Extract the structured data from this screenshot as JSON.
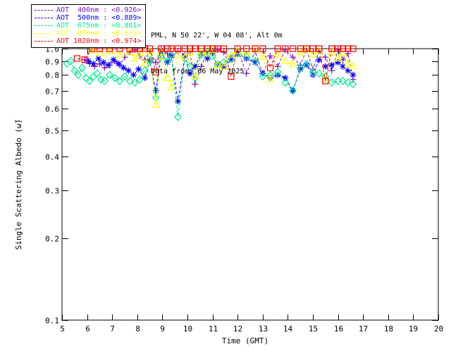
{
  "header": {
    "site_line": "PML, N 50 22', W 04 08', Alt 0m",
    "date_line": "Data from: 06 May 2025"
  },
  "legend": {
    "items": [
      {
        "label": "AOT  400nm : <0.926>",
        "color": "#7d10c0",
        "marker": "plus"
      },
      {
        "label": "AOT  500nm : <0.889>",
        "color": "#0000ff",
        "marker": "asterisk"
      },
      {
        "label": "AOT  675nm : <0.861>",
        "color": "#00e88c",
        "marker": "diamond"
      },
      {
        "label": "AOT  870nm : <0.923>",
        "color": "#ffff00",
        "marker": "triangle"
      },
      {
        "label": "AOT 1020nm : <0.974>",
        "color": "#ff0000",
        "marker": "square"
      }
    ]
  },
  "chart_data": {
    "type": "line",
    "title": "",
    "xlabel": "Time (GMT)",
    "ylabel": "Single Scattering Albedo (ω̃)",
    "xlim": [
      5,
      20
    ],
    "ylim": [
      0.1,
      1.0
    ],
    "yscale": "log",
    "grid": false,
    "legend_position": "top-left-outside",
    "xticks": [
      5,
      6,
      7,
      8,
      9,
      10,
      11,
      12,
      13,
      14,
      15,
      16,
      17,
      18,
      19,
      20
    ],
    "yticks": [
      1.0,
      0.9,
      0.8,
      0.7,
      0.6,
      0.5,
      0.4,
      0.3,
      0.2,
      0.1
    ],
    "axis_color": "#000000",
    "series": [
      {
        "name": "AOT 400nm",
        "wavelength_nm": 400,
        "mean_label": "<0.926>",
        "color": "#7d10c0",
        "marker": "plus",
        "points": [
          [
            5.9,
            0.91
          ],
          [
            6.1,
            0.88
          ],
          [
            6.3,
            0.86
          ],
          [
            6.5,
            0.88
          ],
          [
            6.7,
            0.85
          ],
          [
            6.9,
            0.87
          ],
          [
            7.1,
            0.9
          ],
          [
            7.3,
            0.87
          ],
          [
            7.5,
            0.93
          ],
          [
            7.7,
            0.97
          ],
          [
            7.9,
            0.99
          ],
          [
            8.1,
            0.94
          ],
          [
            8.3,
            0.91
          ],
          [
            8.5,
            0.98
          ],
          [
            8.74,
            0.89
          ],
          [
            8.95,
            0.99
          ],
          [
            9.2,
            0.96
          ],
          [
            9.35,
            0.93
          ],
          [
            9.62,
            0.98
          ],
          [
            9.9,
            0.95
          ],
          [
            10.1,
            0.97
          ],
          [
            10.3,
            0.74
          ],
          [
            10.55,
            0.86
          ],
          [
            10.8,
            0.98
          ],
          [
            11.0,
            0.96
          ],
          [
            11.2,
            0.99
          ],
          [
            11.45,
            0.97
          ],
          [
            11.74,
            0.93
          ],
          [
            12.0,
            0.99
          ],
          [
            12.35,
            0.81
          ],
          [
            12.7,
            0.98
          ],
          [
            13.0,
            0.81
          ],
          [
            13.3,
            0.94
          ],
          [
            13.6,
            0.86
          ],
          [
            13.9,
            0.99
          ],
          [
            14.2,
            0.93
          ],
          [
            14.5,
            0.87
          ],
          [
            14.75,
            0.99
          ],
          [
            15.0,
            0.84
          ],
          [
            15.25,
            0.98
          ],
          [
            15.5,
            0.93
          ],
          [
            15.75,
            0.83
          ],
          [
            16.0,
            0.99
          ],
          [
            16.2,
            0.91
          ],
          [
            16.4,
            0.96
          ],
          [
            16.6,
            0.77
          ]
        ]
      },
      {
        "name": "AOT 500nm",
        "wavelength_nm": 500,
        "mean_label": "<0.889>",
        "color": "#0000ff",
        "marker": "asterisk",
        "points": [
          [
            6.05,
            0.9
          ],
          [
            6.25,
            0.88
          ],
          [
            6.45,
            0.92
          ],
          [
            6.65,
            0.89
          ],
          [
            6.85,
            0.87
          ],
          [
            7.05,
            0.91
          ],
          [
            7.25,
            0.88
          ],
          [
            7.45,
            0.85
          ],
          [
            7.65,
            0.83
          ],
          [
            7.85,
            0.8
          ],
          [
            8.05,
            0.84
          ],
          [
            8.3,
            0.78
          ],
          [
            8.5,
            0.9
          ],
          [
            8.74,
            0.7
          ],
          [
            8.95,
            0.96
          ],
          [
            9.2,
            0.89
          ],
          [
            9.35,
            0.94
          ],
          [
            9.62,
            0.64
          ],
          [
            9.9,
            0.94
          ],
          [
            10.1,
            0.81
          ],
          [
            10.3,
            0.86
          ],
          [
            10.55,
            0.96
          ],
          [
            10.8,
            0.92
          ],
          [
            11.0,
            0.97
          ],
          [
            11.2,
            0.88
          ],
          [
            11.45,
            0.86
          ],
          [
            11.74,
            0.91
          ],
          [
            12.0,
            0.96
          ],
          [
            12.35,
            0.92
          ],
          [
            12.7,
            0.89
          ],
          [
            13.0,
            0.81
          ],
          [
            13.3,
            0.78
          ],
          [
            13.6,
            0.8
          ],
          [
            13.9,
            0.78
          ],
          [
            14.2,
            0.7
          ],
          [
            14.5,
            0.84
          ],
          [
            14.75,
            0.87
          ],
          [
            15.0,
            0.8
          ],
          [
            15.25,
            0.91
          ],
          [
            15.5,
            0.86
          ],
          [
            15.75,
            0.87
          ],
          [
            16.0,
            0.89
          ],
          [
            16.2,
            0.86
          ],
          [
            16.4,
            0.83
          ],
          [
            16.6,
            0.8
          ]
        ]
      },
      {
        "name": "AOT 675nm",
        "wavelength_nm": 675,
        "mean_label": "<0.861>",
        "color": "#00e88c",
        "marker": "diamond",
        "points": [
          [
            5.2,
            0.88
          ],
          [
            5.35,
            0.9
          ],
          [
            5.5,
            0.83
          ],
          [
            5.65,
            0.8
          ],
          [
            5.8,
            0.85
          ],
          [
            5.95,
            0.78
          ],
          [
            6.1,
            0.76
          ],
          [
            6.25,
            0.79
          ],
          [
            6.4,
            0.81
          ],
          [
            6.55,
            0.77
          ],
          [
            6.7,
            0.76
          ],
          [
            6.9,
            0.8
          ],
          [
            7.1,
            0.78
          ],
          [
            7.3,
            0.76
          ],
          [
            7.5,
            0.79
          ],
          [
            7.7,
            0.76
          ],
          [
            7.9,
            0.75
          ],
          [
            8.1,
            0.77
          ],
          [
            8.3,
            0.83
          ],
          [
            8.5,
            0.91
          ],
          [
            8.74,
            0.66
          ],
          [
            8.95,
            0.94
          ],
          [
            9.2,
            0.9
          ],
          [
            9.35,
            0.95
          ],
          [
            9.62,
            0.56
          ],
          [
            9.9,
            0.92
          ],
          [
            10.1,
            0.86
          ],
          [
            10.3,
            0.78
          ],
          [
            10.55,
            0.95
          ],
          [
            10.8,
            0.97
          ],
          [
            11.0,
            0.94
          ],
          [
            11.2,
            0.87
          ],
          [
            11.45,
            0.89
          ],
          [
            11.74,
            0.92
          ],
          [
            12.0,
            0.96
          ],
          [
            12.35,
            0.94
          ],
          [
            12.7,
            0.9
          ],
          [
            13.0,
            0.79
          ],
          [
            13.3,
            0.8
          ],
          [
            13.6,
            0.82
          ],
          [
            13.9,
            0.75
          ],
          [
            14.2,
            0.7
          ],
          [
            14.5,
            0.85
          ],
          [
            14.75,
            0.88
          ],
          [
            15.0,
            0.82
          ],
          [
            15.25,
            0.81
          ],
          [
            15.5,
            0.79
          ],
          [
            15.75,
            0.75
          ],
          [
            16.0,
            0.76
          ],
          [
            16.2,
            0.76
          ],
          [
            16.4,
            0.75
          ],
          [
            16.6,
            0.74
          ]
        ]
      },
      {
        "name": "AOT 870nm",
        "wavelength_nm": 870,
        "mean_label": "<0.923>",
        "color": "#ffff00",
        "marker": "triangle",
        "points": [
          [
            6.2,
            0.99
          ],
          [
            6.5,
            0.96
          ],
          [
            6.9,
            0.98
          ],
          [
            7.3,
            0.95
          ],
          [
            7.7,
            0.97
          ],
          [
            7.9,
            0.92
          ],
          [
            8.1,
            0.96
          ],
          [
            8.3,
            0.88
          ],
          [
            8.5,
            0.98
          ],
          [
            8.74,
            0.62
          ],
          [
            8.95,
            0.97
          ],
          [
            9.2,
            0.78
          ],
          [
            9.35,
            0.72
          ],
          [
            9.62,
            0.95
          ],
          [
            9.9,
            0.93
          ],
          [
            10.1,
            0.97
          ],
          [
            10.3,
            0.79
          ],
          [
            10.55,
            0.98
          ],
          [
            10.8,
            0.96
          ],
          [
            11.0,
            0.99
          ],
          [
            11.2,
            0.87
          ],
          [
            11.45,
            0.86
          ],
          [
            11.74,
            0.95
          ],
          [
            12.0,
            0.98
          ],
          [
            12.35,
            0.96
          ],
          [
            12.7,
            0.99
          ],
          [
            13.0,
            0.93
          ],
          [
            13.3,
            0.77
          ],
          [
            13.6,
            0.96
          ],
          [
            13.9,
            0.9
          ],
          [
            14.2,
            0.88
          ],
          [
            14.5,
            0.97
          ],
          [
            14.75,
            0.99
          ],
          [
            15.0,
            0.95
          ],
          [
            15.25,
            0.98
          ],
          [
            15.5,
            0.77
          ],
          [
            15.75,
            0.97
          ],
          [
            16.0,
            0.92
          ],
          [
            16.2,
            0.96
          ],
          [
            16.4,
            0.88
          ],
          [
            16.6,
            0.86
          ]
        ]
      },
      {
        "name": "AOT 1020nm",
        "wavelength_nm": 1020,
        "mean_label": "<0.974>",
        "color": "#ff0000",
        "marker": "square",
        "points": [
          [
            5.6,
            0.92
          ],
          [
            5.9,
            0.91
          ],
          [
            6.2,
            1.0
          ],
          [
            6.5,
            1.0
          ],
          [
            6.9,
            1.0
          ],
          [
            7.3,
            1.0
          ],
          [
            7.7,
            1.0
          ],
          [
            7.9,
            1.0
          ],
          [
            8.1,
            1.0
          ],
          [
            8.3,
            1.0
          ],
          [
            8.5,
            1.0
          ],
          [
            8.74,
            0.82
          ],
          [
            8.95,
            1.0
          ],
          [
            9.2,
            1.0
          ],
          [
            9.35,
            1.0
          ],
          [
            9.62,
            1.0
          ],
          [
            9.9,
            1.0
          ],
          [
            10.1,
            1.0
          ],
          [
            10.3,
            1.0
          ],
          [
            10.55,
            1.0
          ],
          [
            10.8,
            1.0
          ],
          [
            11.0,
            1.0
          ],
          [
            11.2,
            1.0
          ],
          [
            11.45,
            1.0
          ],
          [
            11.74,
            0.79
          ],
          [
            12.0,
            1.0
          ],
          [
            12.35,
            1.0
          ],
          [
            12.7,
            1.0
          ],
          [
            13.0,
            1.0
          ],
          [
            13.3,
            0.85
          ],
          [
            13.6,
            1.0
          ],
          [
            13.9,
            1.0
          ],
          [
            14.2,
            1.0
          ],
          [
            14.5,
            1.0
          ],
          [
            14.75,
            1.0
          ],
          [
            15.0,
            1.0
          ],
          [
            15.25,
            1.0
          ],
          [
            15.5,
            0.76
          ],
          [
            15.75,
            1.0
          ],
          [
            16.0,
            1.0
          ],
          [
            16.2,
            1.0
          ],
          [
            16.4,
            1.0
          ],
          [
            16.6,
            1.0
          ]
        ]
      }
    ]
  }
}
